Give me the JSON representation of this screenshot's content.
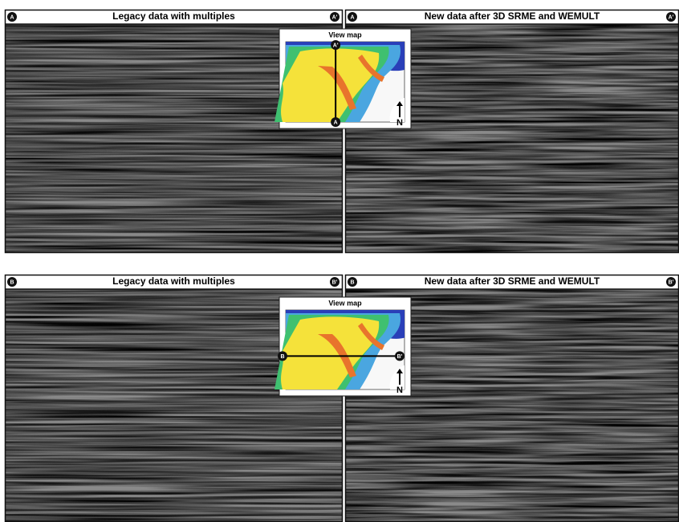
{
  "panels": [
    {
      "title": "Legacy data with multiples",
      "start_marker": "A",
      "end_marker": "A'"
    },
    {
      "title": "New data after 3D SRME and WEMULT",
      "start_marker": "A",
      "end_marker": "A'"
    },
    {
      "title": "Legacy data with multiples",
      "start_marker": "B",
      "end_marker": "B'"
    },
    {
      "title": "New data after 3D SRME and WEMULT",
      "start_marker": "B",
      "end_marker": "B'"
    }
  ],
  "insets": [
    {
      "title": "View map",
      "start_marker": "A'",
      "end_marker": "A",
      "north": "N"
    },
    {
      "title": "View map",
      "start_marker": "B",
      "end_marker": "B'",
      "north": "N"
    }
  ]
}
